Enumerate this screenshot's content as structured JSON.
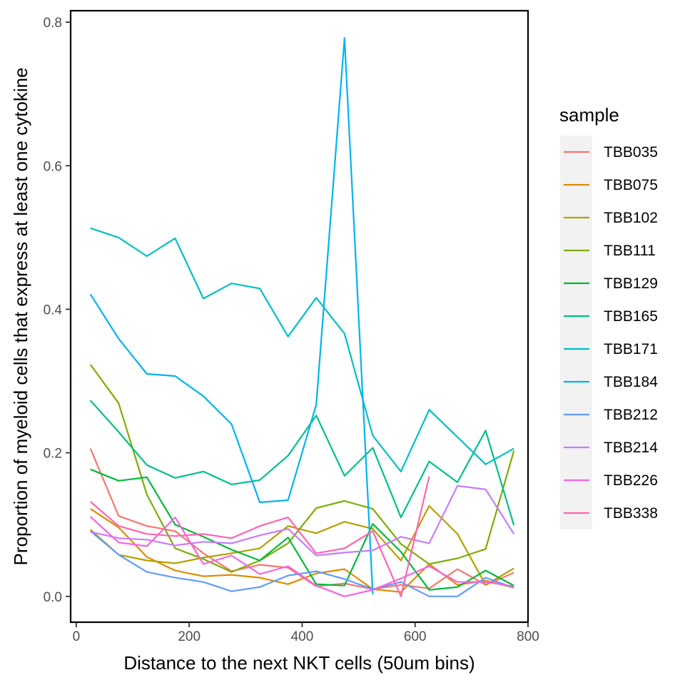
{
  "chart_data": {
    "type": "line",
    "xlabel": "Distance to the next NKT cells (50um bins)",
    "ylabel": "Proportion of myeloid cells that express at least one cytokine",
    "xlim": [
      -10,
      800
    ],
    "ylim": [
      -0.036,
      0.816
    ],
    "x_ticks": [
      0,
      200,
      400,
      600,
      800
    ],
    "x_tick_labels": [
      "0",
      "200",
      "400",
      "600",
      "800"
    ],
    "y_ticks": [
      0.0,
      0.2,
      0.4,
      0.6,
      0.8
    ],
    "y_tick_labels": [
      "0.0",
      "0.2",
      "0.4",
      "0.6",
      "0.8"
    ],
    "grid": false,
    "legend_title": "sample",
    "legend_position": "right",
    "series": [
      {
        "name": "TBB035",
        "color": "#F8766D",
        "points": [
          [
            25,
            0.206
          ],
          [
            75,
            0.112
          ],
          [
            125,
            0.098
          ],
          [
            175,
            0.091
          ],
          [
            225,
            0.06
          ],
          [
            275,
            0.035
          ],
          [
            325,
            0.044
          ],
          [
            375,
            0.04
          ],
          [
            425,
            0.014
          ],
          [
            475,
            0.018
          ],
          [
            525,
            0.01
          ],
          [
            575,
            0.016
          ],
          [
            625,
            0.011
          ],
          [
            675,
            0.038
          ],
          [
            725,
            0.016
          ],
          [
            775,
            0.033
          ]
        ]
      },
      {
        "name": "TBB075",
        "color": "#DE8C00",
        "points": [
          [
            25,
            0.122
          ],
          [
            75,
            0.096
          ],
          [
            125,
            0.055
          ],
          [
            175,
            0.036
          ],
          [
            225,
            0.028
          ],
          [
            275,
            0.03
          ],
          [
            325,
            0.026
          ],
          [
            375,
            0.017
          ],
          [
            425,
            0.032
          ],
          [
            475,
            0.038
          ],
          [
            525,
            0.01
          ],
          [
            575,
            0.006
          ],
          [
            625,
            0.045
          ],
          [
            675,
            0.016
          ],
          [
            725,
            0.022
          ],
          [
            775,
            0.012
          ]
        ]
      },
      {
        "name": "TBB102",
        "color": "#B79F00",
        "points": [
          [
            25,
            0.093
          ],
          [
            75,
            0.058
          ],
          [
            125,
            0.05
          ],
          [
            175,
            0.046
          ],
          [
            225,
            0.054
          ],
          [
            275,
            0.06
          ],
          [
            325,
            0.067
          ],
          [
            375,
            0.098
          ],
          [
            425,
            0.088
          ],
          [
            475,
            0.104
          ],
          [
            525,
            0.094
          ],
          [
            575,
            0.05
          ],
          [
            625,
            0.126
          ],
          [
            675,
            0.087
          ],
          [
            725,
            0.016
          ],
          [
            775,
            0.039
          ]
        ]
      },
      {
        "name": "TBB111",
        "color": "#7CAE00",
        "points": [
          [
            25,
            0.323
          ],
          [
            75,
            0.269
          ],
          [
            125,
            0.142
          ],
          [
            175,
            0.067
          ],
          [
            225,
            0.052
          ],
          [
            275,
            0.034
          ],
          [
            325,
            0.05
          ],
          [
            375,
            0.074
          ],
          [
            425,
            0.123
          ],
          [
            475,
            0.133
          ],
          [
            525,
            0.122
          ],
          [
            575,
            0.073
          ],
          [
            625,
            0.045
          ],
          [
            675,
            0.053
          ],
          [
            725,
            0.066
          ],
          [
            775,
            0.203
          ]
        ]
      },
      {
        "name": "TBB129",
        "color": "#00BA38",
        "points": [
          [
            25,
            0.177
          ],
          [
            75,
            0.161
          ],
          [
            125,
            0.166
          ],
          [
            175,
            0.1
          ],
          [
            225,
            0.083
          ],
          [
            275,
            0.065
          ],
          [
            325,
            0.05
          ],
          [
            375,
            0.082
          ],
          [
            425,
            0.017
          ],
          [
            475,
            0.015
          ],
          [
            525,
            0.101
          ],
          [
            575,
            0.062
          ],
          [
            625,
            0.009
          ],
          [
            675,
            0.013
          ],
          [
            725,
            0.036
          ],
          [
            775,
            0.015
          ]
        ]
      },
      {
        "name": "TBB165",
        "color": "#00C08B",
        "points": [
          [
            25,
            0.273
          ],
          [
            75,
            0.229
          ],
          [
            125,
            0.183
          ],
          [
            175,
            0.165
          ],
          [
            225,
            0.174
          ],
          [
            275,
            0.156
          ],
          [
            325,
            0.162
          ],
          [
            375,
            0.196
          ],
          [
            425,
            0.252
          ],
          [
            475,
            0.168
          ],
          [
            525,
            0.207
          ],
          [
            575,
            0.11
          ],
          [
            625,
            0.188
          ],
          [
            675,
            0.159
          ],
          [
            725,
            0.231
          ],
          [
            775,
            0.099
          ]
        ]
      },
      {
        "name": "TBB171",
        "color": "#00BFC4",
        "points": [
          [
            25,
            0.513
          ],
          [
            75,
            0.5
          ],
          [
            125,
            0.474
          ],
          [
            175,
            0.499
          ],
          [
            225,
            0.415
          ],
          [
            275,
            0.436
          ],
          [
            325,
            0.429
          ],
          [
            375,
            0.362
          ],
          [
            425,
            0.416
          ],
          [
            475,
            0.366
          ],
          [
            525,
            0.224
          ],
          [
            575,
            0.174
          ],
          [
            625,
            0.26
          ],
          [
            675,
            0.222
          ],
          [
            725,
            0.184
          ],
          [
            775,
            0.206
          ]
        ]
      },
      {
        "name": "TBB184",
        "color": "#00B4F0",
        "points": [
          [
            25,
            0.421
          ],
          [
            75,
            0.359
          ],
          [
            125,
            0.31
          ],
          [
            175,
            0.307
          ],
          [
            225,
            0.279
          ],
          [
            275,
            0.24
          ],
          [
            325,
            0.131
          ],
          [
            375,
            0.134
          ],
          [
            425,
            0.267
          ],
          [
            475,
            0.778
          ],
          [
            525,
            0.003
          ]
        ]
      },
      {
        "name": "TBB212",
        "color": "#619CFF",
        "points": [
          [
            25,
            0.091
          ],
          [
            75,
            0.058
          ],
          [
            125,
            0.034
          ],
          [
            175,
            0.026
          ],
          [
            225,
            0.02
          ],
          [
            275,
            0.007
          ],
          [
            325,
            0.013
          ],
          [
            375,
            0.029
          ],
          [
            425,
            0.035
          ],
          [
            475,
            0.024
          ],
          [
            525,
            0.01
          ],
          [
            575,
            0.02
          ],
          [
            625,
            0.0
          ],
          [
            675,
            0.0
          ],
          [
            725,
            0.026
          ],
          [
            775,
            0.012
          ]
        ]
      },
      {
        "name": "TBB214",
        "color": "#C77CFF",
        "points": [
          [
            25,
            0.09
          ],
          [
            75,
            0.081
          ],
          [
            125,
            0.079
          ],
          [
            175,
            0.071
          ],
          [
            225,
            0.076
          ],
          [
            275,
            0.074
          ],
          [
            325,
            0.085
          ],
          [
            375,
            0.094
          ],
          [
            425,
            0.057
          ],
          [
            475,
            0.061
          ],
          [
            525,
            0.064
          ],
          [
            575,
            0.083
          ],
          [
            625,
            0.074
          ],
          [
            675,
            0.154
          ],
          [
            725,
            0.149
          ],
          [
            775,
            0.087
          ]
        ]
      },
      {
        "name": "TBB226",
        "color": "#F564E3",
        "points": [
          [
            25,
            0.111
          ],
          [
            75,
            0.075
          ],
          [
            125,
            0.07
          ],
          [
            175,
            0.11
          ],
          [
            225,
            0.045
          ],
          [
            275,
            0.057
          ],
          [
            325,
            0.031
          ],
          [
            375,
            0.042
          ],
          [
            425,
            0.015
          ],
          [
            475,
            0.0
          ],
          [
            525,
            0.009
          ],
          [
            575,
            0.025
          ],
          [
            625,
            0.042
          ],
          [
            675,
            0.02
          ],
          [
            725,
            0.02
          ],
          [
            775,
            0.014
          ]
        ]
      },
      {
        "name": "TBB338",
        "color": "#FF64B0",
        "points": [
          [
            25,
            0.132
          ],
          [
            75,
            0.098
          ],
          [
            125,
            0.087
          ],
          [
            175,
            0.084
          ],
          [
            225,
            0.087
          ],
          [
            275,
            0.081
          ],
          [
            325,
            0.098
          ],
          [
            375,
            0.11
          ],
          [
            425,
            0.06
          ],
          [
            475,
            0.067
          ],
          [
            525,
            0.091
          ],
          [
            575,
            0.0
          ],
          [
            625,
            0.167
          ]
        ]
      }
    ]
  }
}
